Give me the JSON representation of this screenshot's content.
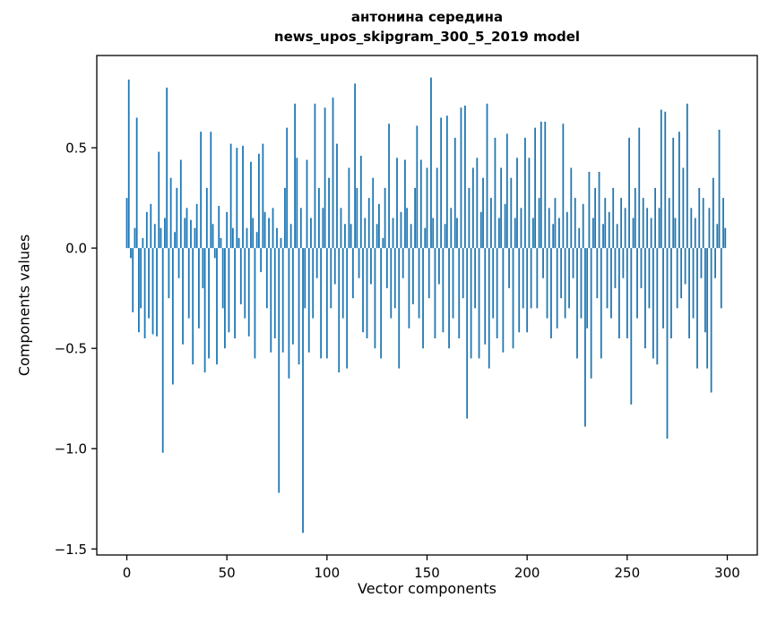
{
  "chart_data": {
    "type": "bar",
    "title_lines": [
      "антонина середина",
      "news_upos_skipgram_300_5_2019 model"
    ],
    "xlabel": "Vector components",
    "ylabel": "Components values",
    "xlim": [
      -15,
      315
    ],
    "ylim": [
      -1.53,
      0.96
    ],
    "xticks": [
      0,
      50,
      100,
      150,
      200,
      250,
      300
    ],
    "yticks": [
      0.5,
      0.0,
      -0.5,
      -1.0,
      -1.5
    ],
    "bar_color": "#1f77b4",
    "bar_width_units": 0.8,
    "grid": false,
    "legend": "none",
    "x_start": 0,
    "values": [
      0.25,
      0.84,
      -0.05,
      -0.32,
      0.1,
      0.65,
      -0.42,
      -0.3,
      0.05,
      -0.45,
      0.18,
      -0.35,
      0.22,
      -0.43,
      0.12,
      -0.44,
      0.48,
      0.1,
      -1.02,
      0.15,
      0.8,
      -0.25,
      0.35,
      -0.68,
      0.08,
      0.3,
      -0.15,
      0.44,
      -0.48,
      0.15,
      0.2,
      -0.35,
      0.14,
      -0.58,
      0.1,
      0.22,
      -0.4,
      0.58,
      -0.2,
      -0.62,
      0.3,
      -0.55,
      0.58,
      0.12,
      -0.05,
      -0.58,
      0.21,
      0.05,
      -0.3,
      -0.5,
      0.18,
      -0.42,
      0.52,
      0.1,
      -0.45,
      0.5,
      0.05,
      -0.28,
      0.51,
      -0.35,
      0.1,
      -0.44,
      0.43,
      0.15,
      -0.55,
      0.08,
      0.47,
      -0.12,
      0.52,
      0.18,
      -0.3,
      0.15,
      -0.52,
      0.2,
      -0.45,
      0.1,
      -1.22,
      0.05,
      -0.52,
      0.3,
      0.6,
      -0.65,
      0.12,
      -0.48,
      0.72,
      0.45,
      -0.58,
      0.2,
      -1.42,
      -0.3,
      0.44,
      -0.52,
      0.15,
      -0.35,
      0.72,
      -0.15,
      0.3,
      -0.55,
      0.2,
      0.7,
      -0.55,
      0.35,
      -0.3,
      0.75,
      -0.18,
      0.52,
      -0.62,
      0.2,
      -0.35,
      0.12,
      -0.6,
      0.4,
      0.12,
      -0.25,
      0.82,
      0.3,
      -0.15,
      0.46,
      -0.42,
      0.15,
      -0.45,
      0.25,
      -0.18,
      0.35,
      -0.5,
      0.12,
      0.22,
      -0.55,
      0.05,
      0.3,
      -0.2,
      0.62,
      -0.35,
      0.15,
      -0.3,
      0.45,
      -0.6,
      0.18,
      -0.15,
      0.44,
      0.2,
      -0.4,
      0.12,
      -0.28,
      0.3,
      0.61,
      -0.35,
      0.44,
      -0.5,
      0.1,
      0.4,
      -0.25,
      0.85,
      0.15,
      -0.45,
      0.4,
      -0.18,
      0.65,
      -0.42,
      0.12,
      0.66,
      -0.5,
      0.2,
      -0.35,
      0.55,
      0.15,
      -0.45,
      0.7,
      -0.25,
      0.71,
      -0.85,
      0.3,
      -0.55,
      0.4,
      -0.3,
      0.45,
      -0.55,
      0.18,
      0.35,
      -0.48,
      0.72,
      -0.6,
      0.25,
      -0.35,
      0.55,
      -0.45,
      0.15,
      0.4,
      -0.52,
      0.22,
      0.57,
      -0.2,
      0.35,
      -0.5,
      0.15,
      0.45,
      -0.42,
      0.2,
      -0.3,
      0.55,
      -0.42,
      0.45,
      -0.3,
      0.15,
      0.6,
      -0.3,
      0.25,
      0.63,
      -0.15,
      0.63,
      -0.35,
      0.2,
      -0.45,
      0.12,
      0.25,
      -0.4,
      0.15,
      -0.25,
      0.62,
      -0.35,
      0.18,
      -0.3,
      0.4,
      -0.15,
      0.25,
      -0.55,
      0.1,
      -0.35,
      0.22,
      -0.89,
      -0.4,
      0.38,
      -0.65,
      0.15,
      0.3,
      -0.25,
      0.38,
      -0.55,
      0.12,
      0.25,
      -0.3,
      0.18,
      -0.35,
      0.3,
      -0.2,
      0.12,
      -0.45,
      0.25,
      -0.15,
      0.2,
      -0.45,
      0.55,
      -0.78,
      0.15,
      0.3,
      -0.35,
      0.6,
      -0.2,
      0.25,
      -0.5,
      0.2,
      -0.3,
      0.15,
      -0.55,
      0.3,
      -0.58,
      0.2,
      0.69,
      -0.4,
      0.68,
      -0.95,
      0.25,
      -0.45,
      0.55,
      0.15,
      -0.3,
      0.58,
      -0.25,
      0.4,
      -0.18,
      0.72,
      -0.45,
      0.2,
      -0.35,
      0.15,
      -0.6,
      0.3,
      -0.15,
      0.25,
      -0.42,
      -0.6,
      0.2,
      -0.72,
      0.35,
      -0.15,
      0.12,
      0.59,
      -0.3,
      0.25,
      0.1
    ]
  }
}
